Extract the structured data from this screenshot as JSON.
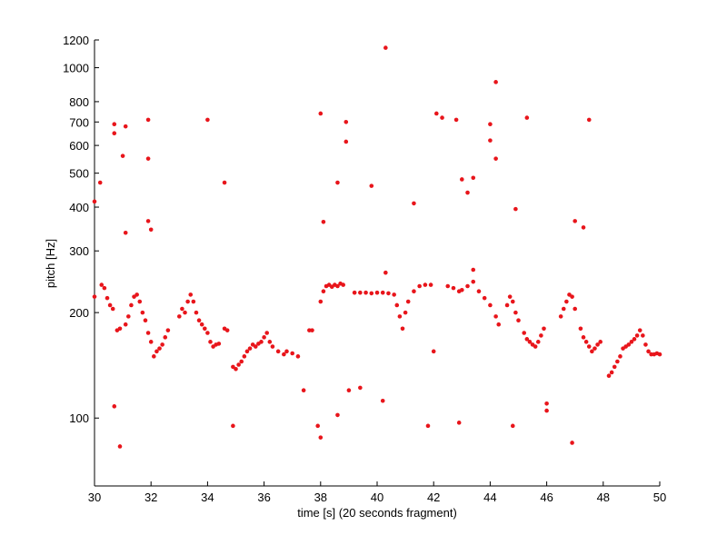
{
  "chart_data": {
    "type": "scatter",
    "xlabel": "time [s] (20 seconds fragment)",
    "ylabel": "pitch [Hz]",
    "color": "#e8151b",
    "log_y": true,
    "xlim": [
      30,
      50
    ],
    "xticks": [
      30,
      32,
      34,
      36,
      38,
      40,
      42,
      44,
      46,
      48,
      50
    ],
    "ylim": [
      64,
      1200
    ],
    "yticks": [
      100,
      200,
      300,
      400,
      500,
      600,
      700,
      800,
      1000,
      1200
    ],
    "x": [
      30.0,
      30.25,
      30.35,
      30.45,
      30.55,
      30.65,
      30.8,
      30.9,
      31.1,
      31.2,
      31.3,
      31.4,
      31.5,
      31.6,
      31.7,
      31.8,
      31.9,
      32.0,
      32.1,
      32.2,
      32.3,
      32.4,
      32.5,
      32.6,
      33.0,
      33.1,
      33.2,
      33.3,
      33.4,
      33.5,
      33.6,
      33.7,
      33.8,
      33.9,
      34.0,
      34.1,
      34.2,
      34.3,
      34.4,
      34.6,
      34.7,
      34.9,
      35.0,
      35.1,
      35.2,
      35.3,
      35.4,
      35.5,
      35.6,
      35.7,
      35.8,
      35.9,
      36.0,
      36.1,
      36.2,
      36.3,
      36.5,
      36.7,
      36.8,
      37.0,
      37.2,
      37.6,
      37.7,
      38.0,
      38.1,
      38.2,
      38.3,
      38.4,
      38.5,
      38.6,
      38.7,
      38.8,
      39.2,
      39.4,
      39.6,
      39.8,
      40.0,
      40.2,
      40.4,
      40.6,
      40.7,
      40.8,
      40.9,
      41.0,
      41.1,
      41.3,
      41.5,
      41.7,
      41.9,
      42.5,
      42.7,
      42.9,
      43.0,
      43.2,
      43.4,
      43.6,
      43.8,
      44.0,
      44.2,
      44.3,
      44.6,
      44.7,
      44.8,
      44.9,
      45.0,
      45.2,
      45.3,
      45.4,
      45.5,
      45.6,
      45.7,
      45.8,
      45.9,
      46.5,
      46.6,
      46.7,
      46.8,
      46.9,
      47.0,
      47.2,
      47.3,
      47.4,
      47.5,
      47.6,
      47.7,
      47.8,
      47.9,
      48.2,
      48.3,
      48.4,
      48.5,
      48.6,
      48.7,
      48.8,
      48.9,
      49.0,
      49.1,
      49.2,
      49.3,
      49.4,
      49.5,
      49.6,
      49.7,
      49.8,
      49.9,
      50.0,
      30.0,
      30.2,
      30.7,
      30.7,
      31.0,
      31.1,
      31.1,
      30.7,
      30.9,
      31.9,
      31.9,
      31.9,
      32.0,
      34.0,
      34.6,
      34.9,
      38.0,
      37.9,
      38.0,
      38.1,
      37.4,
      38.6,
      38.6,
      38.9,
      38.9,
      39.0,
      39.4,
      39.8,
      40.2,
      40.3,
      40.3,
      41.3,
      41.8,
      42.0,
      42.1,
      42.3,
      42.8,
      42.9,
      43.0,
      43.2,
      43.4,
      43.4,
      44.0,
      44.0,
      44.2,
      44.2,
      44.8,
      44.9,
      45.3,
      46.0,
      46.0,
      46.9,
      47.0,
      47.3,
      47.5
    ],
    "values": [
      222,
      240,
      235,
      220,
      210,
      205,
      178,
      180,
      185,
      195,
      210,
      222,
      225,
      215,
      200,
      190,
      175,
      165,
      150,
      155,
      158,
      162,
      170,
      178,
      195,
      205,
      200,
      215,
      225,
      215,
      200,
      190,
      185,
      180,
      175,
      165,
      160,
      162,
      163,
      180,
      178,
      140,
      138,
      142,
      145,
      150,
      155,
      158,
      162,
      160,
      163,
      165,
      170,
      175,
      165,
      160,
      155,
      152,
      155,
      153,
      150,
      178,
      178,
      215,
      230,
      238,
      240,
      237,
      240,
      238,
      242,
      240,
      228,
      228,
      228,
      227,
      228,
      228,
      227,
      225,
      210,
      195,
      180,
      200,
      215,
      230,
      238,
      240,
      240,
      238,
      235,
      230,
      232,
      238,
      245,
      230,
      220,
      210,
      195,
      185,
      210,
      222,
      215,
      200,
      190,
      175,
      168,
      165,
      162,
      160,
      165,
      172,
      180,
      195,
      205,
      215,
      225,
      222,
      205,
      180,
      170,
      165,
      160,
      155,
      158,
      162,
      165,
      132,
      135,
      140,
      145,
      150,
      158,
      160,
      162,
      165,
      168,
      172,
      178,
      172,
      162,
      155,
      152,
      152,
      153,
      152,
      415,
      470,
      690,
      650,
      560,
      680,
      338,
      108,
      83,
      710,
      550,
      365,
      345,
      710,
      470,
      95,
      740,
      95,
      88,
      363,
      120,
      470,
      102,
      700,
      615,
      120,
      122,
      460,
      112,
      1140,
      260,
      410,
      95,
      155,
      740,
      720,
      710,
      97,
      480,
      440,
      265,
      485,
      690,
      620,
      910,
      550,
      95,
      395,
      720,
      105,
      110,
      85,
      365,
      350,
      710
    ]
  }
}
